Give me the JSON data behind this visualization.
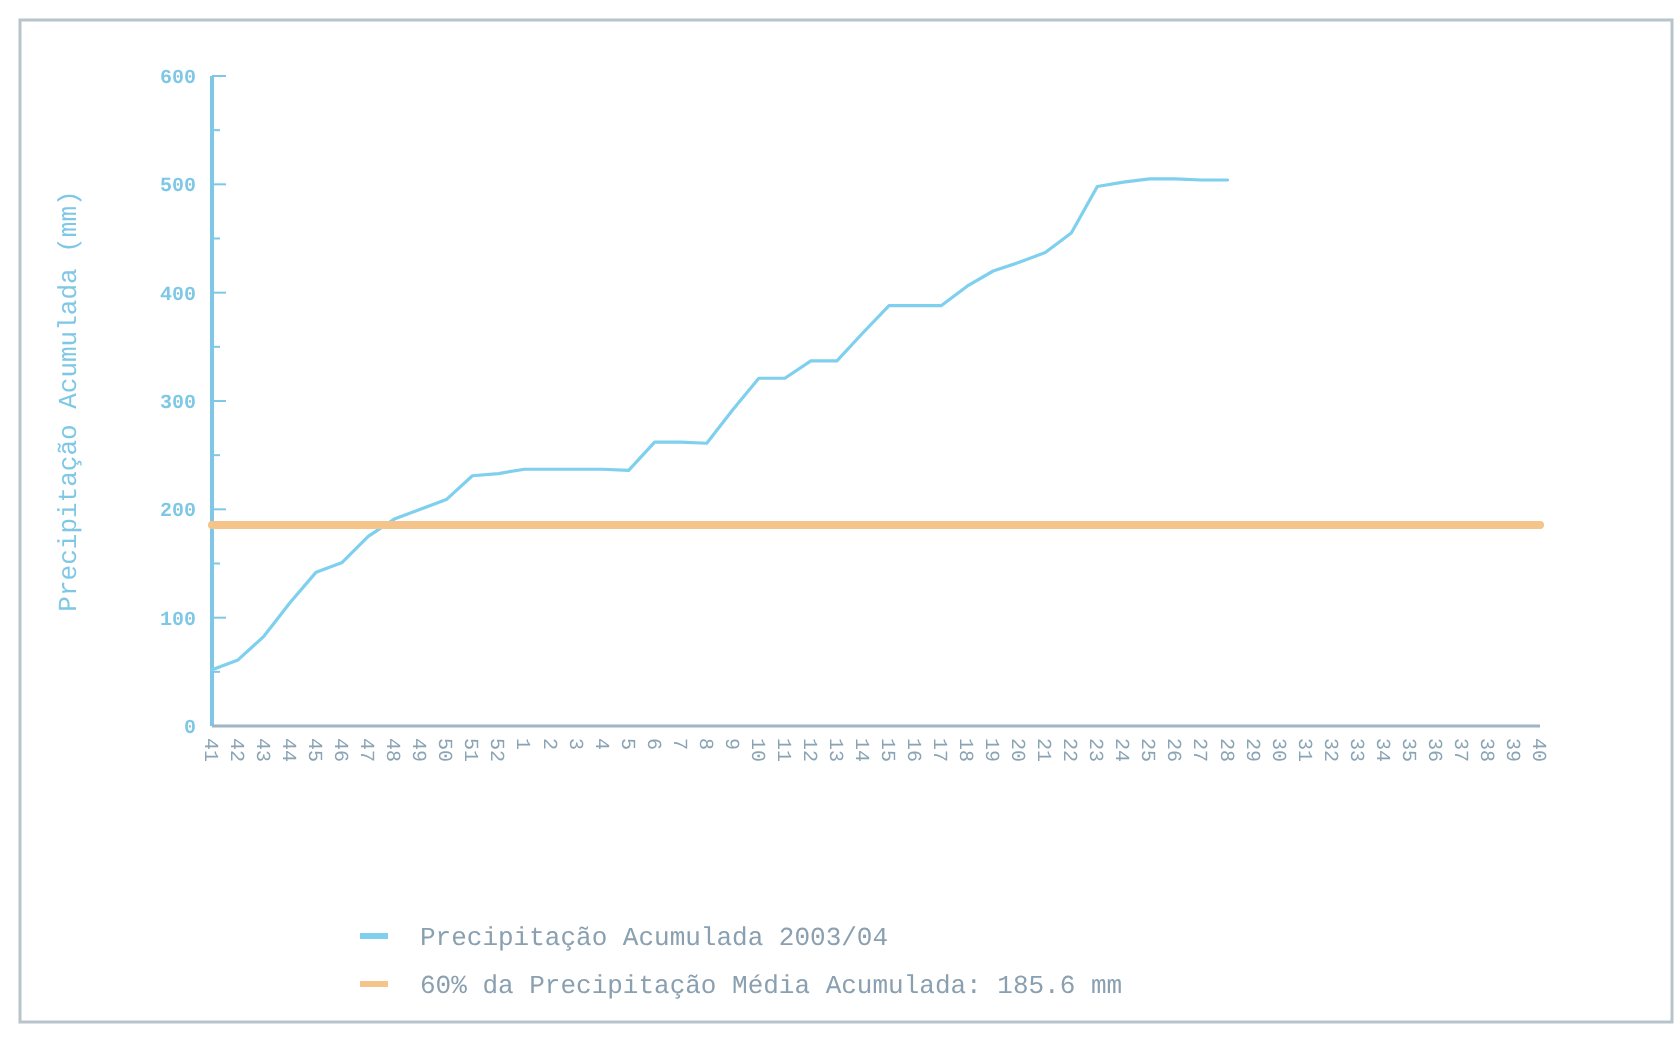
{
  "chart_data": {
    "type": "line",
    "ylabel": "Precipitação Acumulada (mm)",
    "categories": [
      "41",
      "42",
      "43",
      "44",
      "45",
      "46",
      "47",
      "48",
      "49",
      "50",
      "51",
      "52",
      "1",
      "2",
      "3",
      "4",
      "5",
      "6",
      "7",
      "8",
      "9",
      "10",
      "11",
      "12",
      "13",
      "14",
      "15",
      "16",
      "17",
      "18",
      "19",
      "20",
      "21",
      "22",
      "23",
      "24",
      "25",
      "26",
      "27",
      "28",
      "29",
      "30",
      "31",
      "32",
      "33",
      "34",
      "35",
      "36",
      "37",
      "38",
      "39",
      "40"
    ],
    "series": [
      {
        "name": "Precipitação Acumulada 2003/04",
        "color": "#7ed0ee",
        "values": [
          52,
          61,
          83,
          114,
          142,
          151,
          175,
          191,
          200,
          209,
          231,
          233,
          237,
          237,
          237,
          237,
          236,
          262,
          262,
          261,
          292,
          321,
          321,
          337,
          337,
          363,
          388,
          388,
          388,
          406,
          420,
          428,
          437,
          455,
          498,
          502,
          505,
          505,
          504,
          504,
          null,
          null,
          null,
          null,
          null,
          null,
          null,
          null,
          null,
          null,
          null,
          null
        ]
      },
      {
        "name": "60% da Precipitação Média Acumulada: 185.6 mm",
        "color": "#f4c48a",
        "values": [
          185.6,
          185.6,
          185.6,
          185.6,
          185.6,
          185.6,
          185.6,
          185.6,
          185.6,
          185.6,
          185.6,
          185.6,
          185.6,
          185.6,
          185.6,
          185.6,
          185.6,
          185.6,
          185.6,
          185.6,
          185.6,
          185.6,
          185.6,
          185.6,
          185.6,
          185.6,
          185.6,
          185.6,
          185.6,
          185.6,
          185.6,
          185.6,
          185.6,
          185.6,
          185.6,
          185.6,
          185.6,
          185.6,
          185.6,
          185.6,
          185.6,
          185.6,
          185.6,
          185.6,
          185.6,
          185.6,
          185.6,
          185.6,
          185.6,
          185.6,
          185.6,
          185.6
        ]
      }
    ],
    "ylim": [
      0,
      600
    ],
    "yticks": [
      0,
      {
        "value": 50,
        "label": null
      },
      100,
      {
        "value": 150,
        "label": null
      },
      200,
      {
        "value": 250,
        "label": null
      },
      300,
      {
        "value": 350,
        "label": null
      },
      400,
      {
        "value": 450,
        "label": null
      },
      500,
      {
        "value": 550,
        "label": null
      },
      600
    ],
    "grid": false,
    "legend": "bottom",
    "marker": "none",
    "line_style": "solid"
  }
}
